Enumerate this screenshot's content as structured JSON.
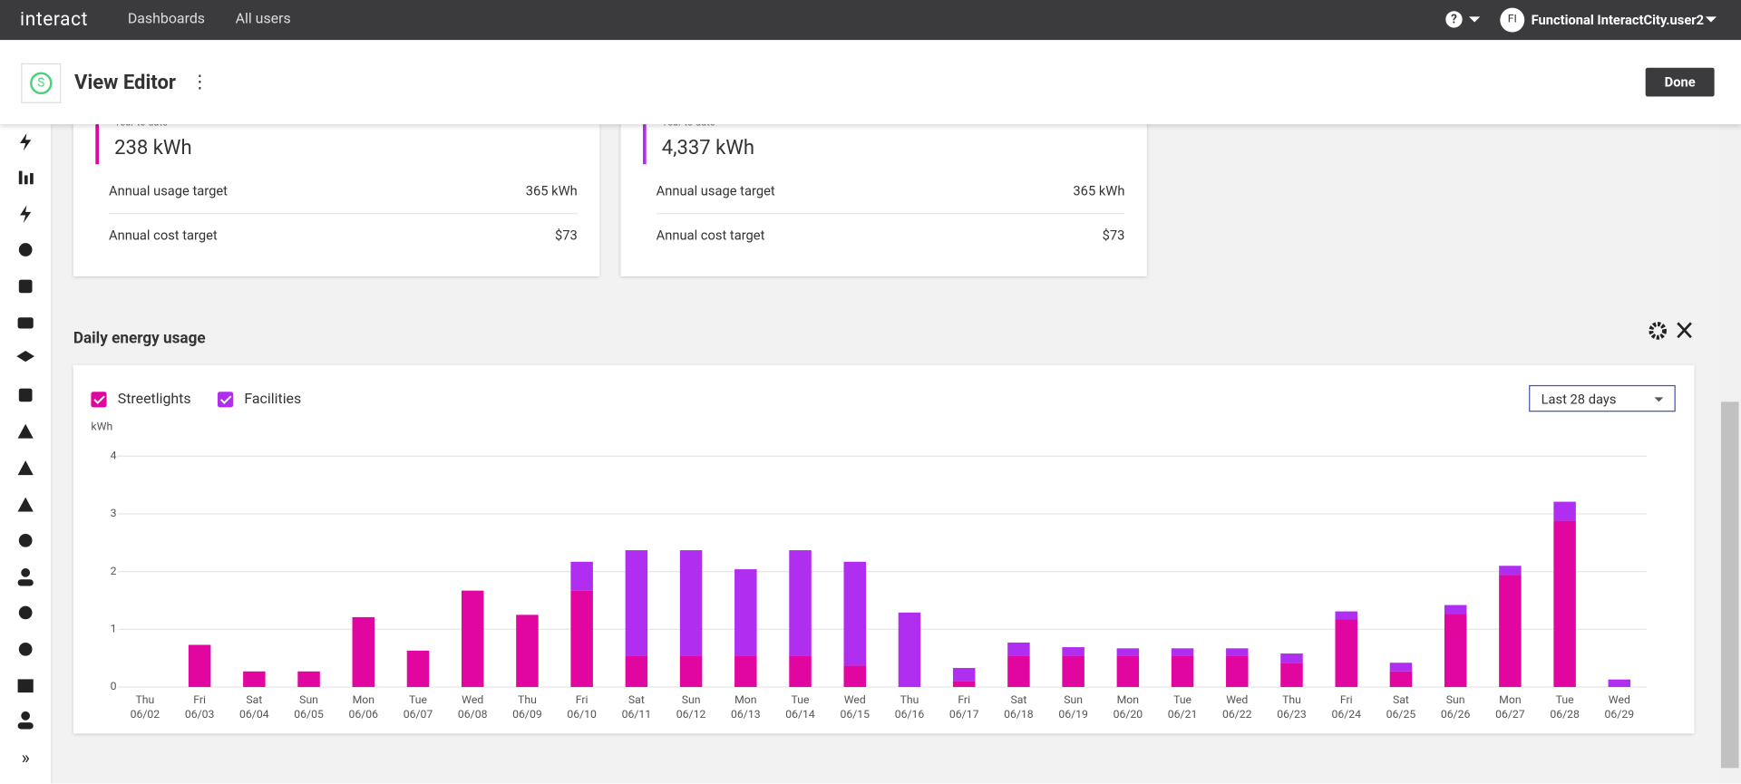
{
  "nav": {
    "brand": "interact",
    "links": [
      "Dashboards",
      "All users"
    ],
    "initials": "FI",
    "user": "Functional InteractCity.user2"
  },
  "header": {
    "title": "View Editor",
    "button": "Done"
  },
  "cards": [
    {
      "label": "Year to date",
      "value": "238 kWh",
      "rows": [
        [
          "Annual usage target",
          "365 kWh"
        ],
        [
          "Annual cost target",
          "$73"
        ]
      ],
      "color": "#e0069f"
    },
    {
      "label": "Year to date",
      "value": "4,337 kWh",
      "rows": [
        [
          "Annual usage target",
          "365 kWh"
        ],
        [
          "Annual cost target",
          "$73"
        ]
      ],
      "color": "#b02ef0"
    }
  ],
  "widget": {
    "title": "Daily energy usage",
    "range": "Last 28 days"
  },
  "chart_data": {
    "type": "bar",
    "stacked": true,
    "ylabel": "kWh",
    "categories": [
      [
        "Thu",
        "06/02"
      ],
      [
        "Fri",
        "06/03"
      ],
      [
        "Sat",
        "06/04"
      ],
      [
        "Sun",
        "06/05"
      ],
      [
        "Mon",
        "06/06"
      ],
      [
        "Tue",
        "06/07"
      ],
      [
        "Wed",
        "06/08"
      ],
      [
        "Thu",
        "06/09"
      ],
      [
        "Fri",
        "06/10"
      ],
      [
        "Sat",
        "06/11"
      ],
      [
        "Sun",
        "06/12"
      ],
      [
        "Mon",
        "06/13"
      ],
      [
        "Tue",
        "06/14"
      ],
      [
        "Wed",
        "06/15"
      ],
      [
        "Thu",
        "06/16"
      ],
      [
        "Fri",
        "06/17"
      ],
      [
        "Sat",
        "06/18"
      ],
      [
        "Sun",
        "06/19"
      ],
      [
        "Mon",
        "06/20"
      ],
      [
        "Tue",
        "06/21"
      ],
      [
        "Wed",
        "06/22"
      ],
      [
        "Thu",
        "06/23"
      ],
      [
        "Fri",
        "06/24"
      ],
      [
        "Sat",
        "06/25"
      ],
      [
        "Sun",
        "06/26"
      ],
      [
        "Mon",
        "06/27"
      ],
      [
        "Tue",
        "06/28"
      ],
      [
        "Wed",
        "06/29"
      ]
    ],
    "series": [
      {
        "name": "Streetlights",
        "color": "#e0069f",
        "values": [
          0,
          0.73,
          0.27,
          0.27,
          1.21,
          0.63,
          1.67,
          1.25,
          1.67,
          0.54,
          0.54,
          0.54,
          0.54,
          0.37,
          0,
          0.1,
          0.54,
          0.54,
          0.54,
          0.54,
          0.54,
          0.42,
          1.17,
          0.27,
          1.27,
          1.94,
          2.88,
          0
        ]
      },
      {
        "name": "Facilities",
        "color": "#b02ef0",
        "values": [
          0,
          0,
          0,
          0,
          0,
          0,
          0,
          0,
          0.5,
          1.83,
          1.83,
          1.5,
          1.83,
          1.8,
          1.29,
          0.23,
          0.23,
          0.15,
          0.13,
          0.13,
          0.13,
          0.16,
          0.14,
          0.15,
          0.15,
          0.16,
          0.33,
          0.13
        ]
      }
    ],
    "ylim": [
      0,
      4
    ],
    "yticks": [
      0,
      1,
      2,
      3,
      4
    ],
    "grid": true
  }
}
